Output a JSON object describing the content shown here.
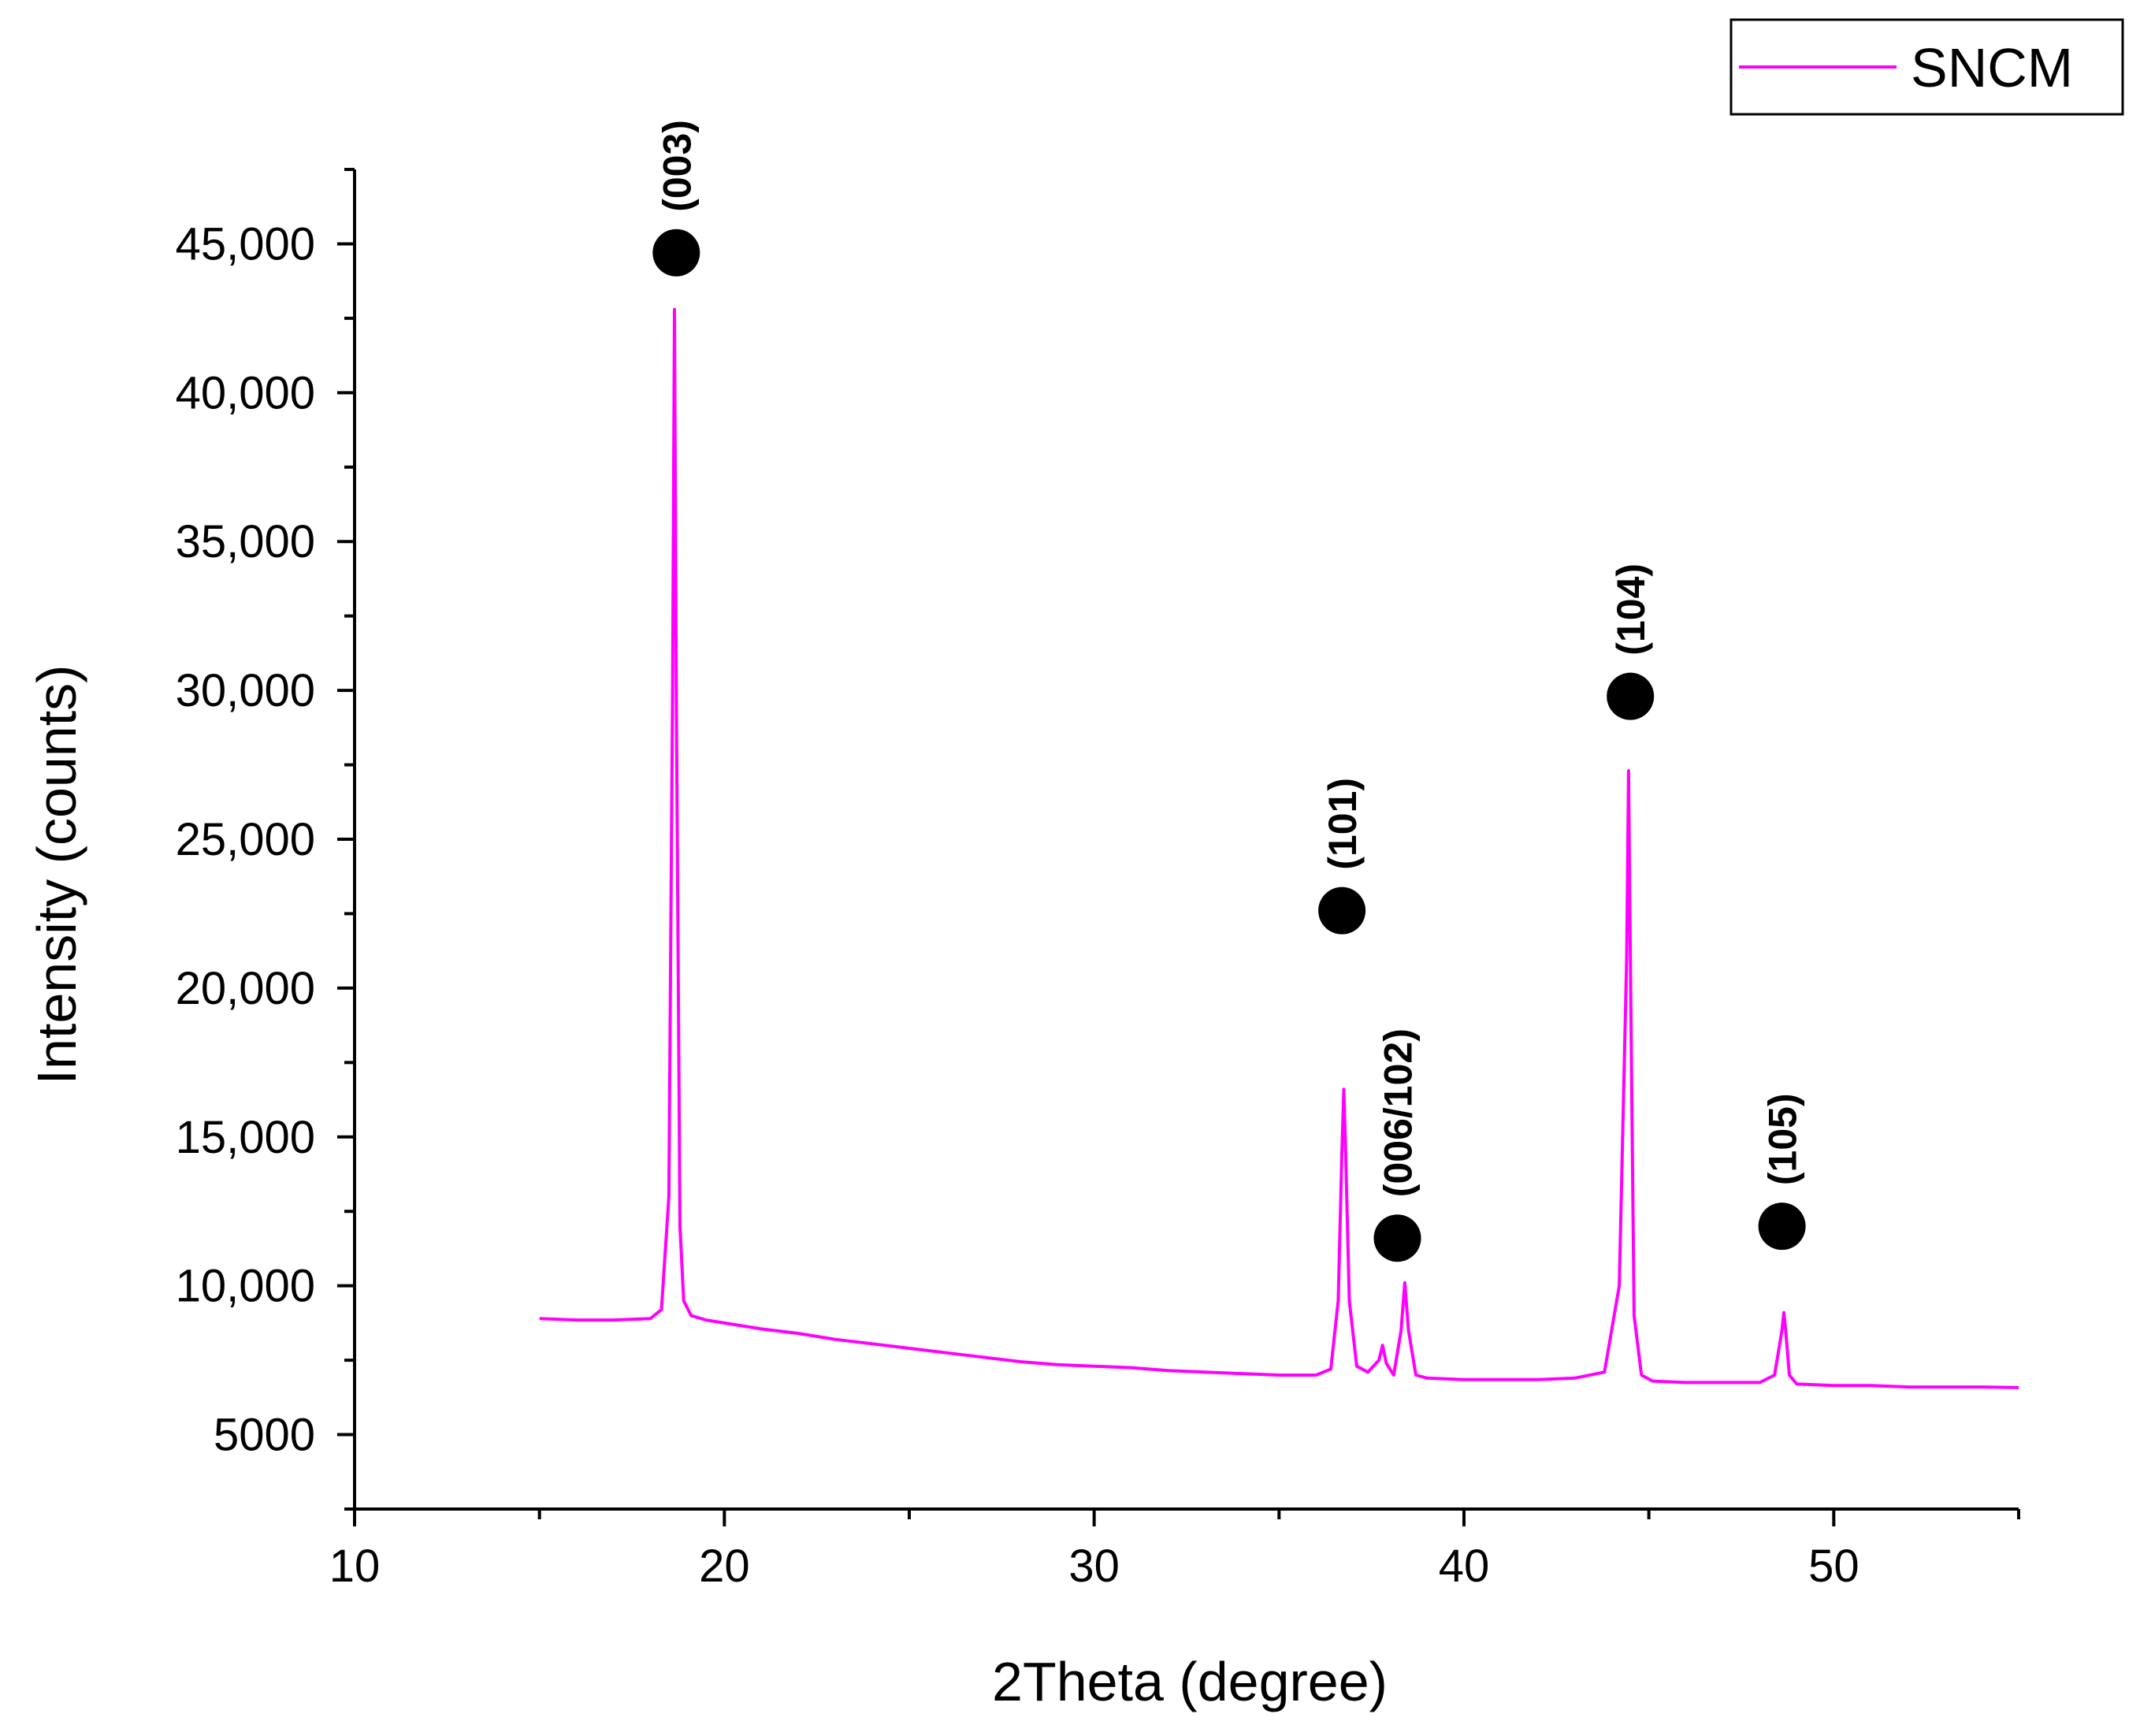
{
  "chart_data": {
    "type": "line",
    "title": "",
    "xlabel": "2Theta (degree)",
    "ylabel": "Intensity (counts)",
    "xlim": [
      10,
      55
    ],
    "ylim": [
      2500,
      47500
    ],
    "x_ticks": [
      10,
      20,
      30,
      40,
      50
    ],
    "x_tick_labels": [
      "10",
      "20",
      "30",
      "40",
      "50"
    ],
    "y_ticks": [
      5000,
      10000,
      15000,
      20000,
      25000,
      30000,
      35000,
      40000,
      45000
    ],
    "y_tick_labels": [
      "5000",
      "10,000",
      "15,000",
      "20,000",
      "25,000",
      "30,000",
      "35,000",
      "40,000",
      "45,000"
    ],
    "grid": false,
    "legend": {
      "position": "top-right",
      "entries": [
        "SNCM"
      ]
    },
    "series": [
      {
        "name": "SNCM",
        "color": "#ff00ff",
        "x": [
          15.0,
          16.0,
          17.0,
          18.0,
          18.3,
          18.5,
          18.6,
          18.65,
          18.7,
          18.8,
          18.9,
          19.1,
          19.5,
          20.0,
          21.0,
          22.0,
          23.0,
          24.0,
          25.0,
          26.0,
          27.0,
          28.0,
          29.0,
          30.0,
          31.0,
          32.0,
          33.0,
          34.0,
          35.0,
          36.0,
          36.4,
          36.6,
          36.7,
          36.75,
          36.8,
          36.9,
          37.1,
          37.4,
          37.7,
          37.8,
          37.9,
          38.1,
          38.3,
          38.4,
          38.5,
          38.7,
          39.0,
          40.0,
          41.0,
          42.0,
          43.0,
          43.8,
          44.2,
          44.4,
          44.45,
          44.5,
          44.6,
          44.8,
          45.1,
          46.0,
          47.0,
          48.0,
          48.4,
          48.6,
          48.65,
          48.7,
          48.8,
          49.0,
          50.0,
          51.0,
          52.0,
          53.0,
          54.0,
          55.0
        ],
        "y": [
          8900,
          8850,
          8850,
          8900,
          9200,
          13000,
          30000,
          42800,
          30000,
          12000,
          9500,
          9000,
          8850,
          8750,
          8550,
          8400,
          8200,
          8050,
          7900,
          7750,
          7600,
          7450,
          7350,
          7300,
          7250,
          7150,
          7100,
          7050,
          7000,
          7000,
          7200,
          9500,
          14500,
          16600,
          14500,
          9500,
          7300,
          7100,
          7500,
          8000,
          7400,
          7000,
          8500,
          10100,
          8500,
          7000,
          6900,
          6850,
          6850,
          6850,
          6900,
          7100,
          10000,
          21000,
          27300,
          21000,
          9000,
          7000,
          6800,
          6750,
          6750,
          6750,
          7000,
          8500,
          9100,
          8500,
          7000,
          6700,
          6650,
          6650,
          6600,
          6600,
          6600,
          6580
        ]
      }
    ],
    "annotations": [
      {
        "label": "(003)",
        "x": 18.7,
        "y": 44700
      },
      {
        "label": "(101)",
        "x": 36.7,
        "y": 22600
      },
      {
        "label": "(006/102)",
        "x": 38.2,
        "y": 11600
      },
      {
        "label": "(104)",
        "x": 44.5,
        "y": 29800
      },
      {
        "label": "(105)",
        "x": 48.6,
        "y": 12000
      }
    ]
  }
}
